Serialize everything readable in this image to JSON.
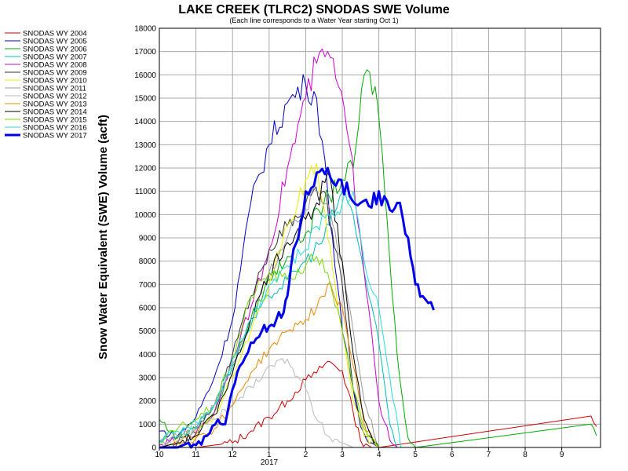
{
  "chart_data": {
    "type": "line",
    "title": "LAKE CREEK (TLRC2) SNODAS SWE Volume",
    "subtitle": "(Each line corresponds to a Water Year starting Oct 1)",
    "ylabel": "Snow Water Equivalent (SWE) Volume (acft)",
    "xlabel": "",
    "x_tick_labels": [
      "10",
      "11",
      "12",
      "1",
      "2",
      "3",
      "4",
      "5",
      "6",
      "7",
      "8",
      "9"
    ],
    "x_year_label": "2017",
    "ylim": [
      0,
      18000
    ],
    "yticks": [
      0,
      1000,
      2000,
      3000,
      4000,
      5000,
      6000,
      7000,
      8000,
      9000,
      10000,
      11000,
      12000,
      13000,
      14000,
      15000,
      16000,
      17000,
      18000
    ],
    "grid": true,
    "legend_position": "left",
    "series": [
      {
        "name": "SNODAS WY 2004",
        "color": "#cc0000",
        "x": [
          0.0,
          1.0,
          2.0,
          2.5,
          3.0,
          3.5,
          4.0,
          4.3,
          4.6,
          5.0,
          5.3,
          5.5,
          5.8,
          6.0,
          11.8,
          11.95
        ],
        "y": [
          0,
          0,
          200,
          700,
          1300,
          2000,
          2900,
          3200,
          3700,
          3300,
          1500,
          300,
          0,
          0,
          1350,
          900
        ]
      },
      {
        "name": "SNODAS WY 2005",
        "color": "#0000bb",
        "x": [
          0.0,
          0.5,
          1.0,
          1.5,
          2.0,
          2.5,
          3.0,
          3.5,
          4.0,
          4.3,
          4.6,
          5.0,
          5.3,
          5.5,
          5.8,
          6.0
        ],
        "y": [
          700,
          500,
          1300,
          3000,
          5500,
          10500,
          13000,
          14800,
          15600,
          15000,
          11000,
          5000,
          2500,
          900,
          200,
          0
        ]
      },
      {
        "name": "SNODAS WY 2006",
        "color": "#00aa00",
        "x": [
          0.0,
          0.5,
          1.0,
          1.5,
          2.0,
          2.5,
          3.0,
          3.5,
          4.0,
          4.5,
          5.0,
          5.3,
          5.6,
          5.9,
          6.1,
          6.3,
          6.5,
          6.8,
          7.0,
          11.8,
          11.95
        ],
        "y": [
          1200,
          400,
          800,
          1500,
          3500,
          5500,
          7200,
          8200,
          9200,
          10500,
          11500,
          12000,
          16000,
          15500,
          12500,
          8000,
          4000,
          400,
          0,
          1000,
          500
        ]
      },
      {
        "name": "SNODAS WY 2007",
        "color": "#00bbbb",
        "x": [
          0.0,
          0.5,
          1.0,
          1.5,
          2.0,
          2.5,
          3.0,
          3.5,
          4.0,
          4.5,
          5.0,
          5.3,
          5.6,
          6.0,
          6.3,
          6.5
        ],
        "y": [
          300,
          500,
          900,
          1800,
          3500,
          5200,
          6500,
          7200,
          8000,
          9000,
          11000,
          10000,
          7500,
          4500,
          1000,
          0
        ]
      },
      {
        "name": "SNODAS WY 2008",
        "color": "#cc00cc",
        "x": [
          0.0,
          0.5,
          1.0,
          1.5,
          2.0,
          2.5,
          3.0,
          3.5,
          4.0,
          4.3,
          4.6,
          4.9,
          5.2,
          5.5,
          5.8,
          6.0,
          6.3,
          6.5
        ],
        "y": [
          100,
          300,
          600,
          1500,
          3800,
          6000,
          8500,
          12000,
          15000,
          16500,
          17000,
          15500,
          13000,
          9000,
          5000,
          2000,
          300,
          0
        ]
      },
      {
        "name": "SNODAS WY 2009",
        "color": "#333333",
        "x": [
          0.0,
          0.5,
          1.0,
          1.5,
          2.0,
          2.5,
          3.0,
          3.5,
          4.0,
          4.5,
          5.0,
          5.3,
          5.6,
          6.0
        ],
        "y": [
          0,
          200,
          600,
          1800,
          4000,
          6500,
          8500,
          9500,
          10500,
          11000,
          7000,
          2500,
          500,
          0
        ]
      },
      {
        "name": "SNODAS WY 2010",
        "color": "#eeee00",
        "x": [
          0.0,
          0.5,
          1.0,
          1.5,
          2.0,
          2.5,
          3.0,
          3.5,
          4.0,
          4.3,
          4.6,
          5.0,
          5.3,
          5.6,
          6.0
        ],
        "y": [
          0,
          200,
          500,
          1400,
          3000,
          5000,
          7000,
          9500,
          11500,
          12200,
          9000,
          5000,
          2000,
          500,
          0
        ]
      },
      {
        "name": "SNODAS WY 2011",
        "color": "#999999",
        "x": [
          0.0,
          0.5,
          1.0,
          1.5,
          2.0,
          2.5,
          3.0,
          3.5,
          4.0,
          4.3,
          4.6,
          5.0,
          5.3,
          5.6,
          6.0
        ],
        "y": [
          200,
          500,
          800,
          1800,
          3600,
          5500,
          7500,
          9000,
          10200,
          11000,
          10500,
          8000,
          5000,
          2000,
          0
        ]
      },
      {
        "name": "SNODAS WY 2012",
        "color": "#bbbbbb",
        "x": [
          0.0,
          0.5,
          1.0,
          1.5,
          2.0,
          2.5,
          3.0,
          3.5,
          4.0,
          4.3,
          4.6,
          5.0,
          5.3
        ],
        "y": [
          0,
          300,
          800,
          1200,
          1800,
          2600,
          3500,
          3800,
          2500,
          1200,
          500,
          200,
          0
        ]
      },
      {
        "name": "SNODAS WY 2013",
        "color": "#ee8800",
        "x": [
          0.0,
          0.5,
          1.0,
          1.5,
          2.0,
          2.5,
          3.0,
          3.5,
          4.0,
          4.3,
          4.6,
          5.0,
          5.3,
          5.6,
          6.0
        ],
        "y": [
          0,
          200,
          400,
          800,
          1800,
          3200,
          4200,
          5000,
          5500,
          6000,
          7000,
          6000,
          3500,
          1000,
          0
        ]
      },
      {
        "name": "SNODAS WY 2014",
        "color": "#000000",
        "x": [
          0.0,
          0.5,
          1.0,
          1.5,
          2.0,
          2.5,
          3.0,
          3.5,
          4.0,
          4.3,
          4.6,
          5.0,
          5.3,
          5.6,
          6.0
        ],
        "y": [
          0,
          200,
          500,
          1400,
          3200,
          5500,
          7500,
          8800,
          9800,
          10500,
          11800,
          8000,
          4000,
          1200,
          0
        ]
      },
      {
        "name": "SNODAS WY 2015",
        "color": "#77dd00",
        "x": [
          0.0,
          0.5,
          1.0,
          1.5,
          2.0,
          2.5,
          3.0,
          3.5,
          4.0,
          4.3,
          4.6,
          5.0,
          5.3,
          5.6,
          6.0
        ],
        "y": [
          200,
          800,
          1200,
          1800,
          3800,
          6500,
          7500,
          7200,
          7800,
          8200,
          7500,
          5000,
          2500,
          800,
          0
        ]
      },
      {
        "name": "SNODAS WY 2016",
        "color": "#22dddd",
        "x": [
          0.0,
          0.5,
          1.0,
          1.5,
          2.0,
          2.5,
          3.0,
          3.5,
          4.0,
          4.3,
          4.6,
          5.0,
          5.3,
          5.6,
          6.0,
          6.3,
          6.6
        ],
        "y": [
          300,
          700,
          1100,
          1800,
          3800,
          5500,
          7000,
          7800,
          8500,
          9500,
          10000,
          10500,
          11000,
          8000,
          6000,
          3000,
          0
        ]
      },
      {
        "name": "SNODAS WY 2017",
        "color": "#0000ee",
        "x": [
          0.0,
          0.5,
          0.8,
          1.0,
          1.3,
          1.6,
          1.8,
          2.0,
          2.2,
          2.5,
          2.8,
          3.0,
          3.2,
          3.4,
          3.5,
          3.6,
          3.8,
          4.0,
          4.3,
          4.6,
          4.9,
          5.2,
          5.5,
          5.8,
          6.0,
          6.3,
          6.5,
          6.8,
          7.0,
          7.2,
          7.5
        ],
        "y": [
          0,
          0,
          200,
          100,
          500,
          1200,
          1000,
          2500,
          3500,
          4500,
          5000,
          5200,
          5500,
          5800,
          6500,
          7800,
          9000,
          11000,
          11800,
          12000,
          11500,
          10800,
          10500,
          10300,
          11000,
          10200,
          10500,
          9000,
          7000,
          6500,
          5900
        ]
      }
    ]
  }
}
